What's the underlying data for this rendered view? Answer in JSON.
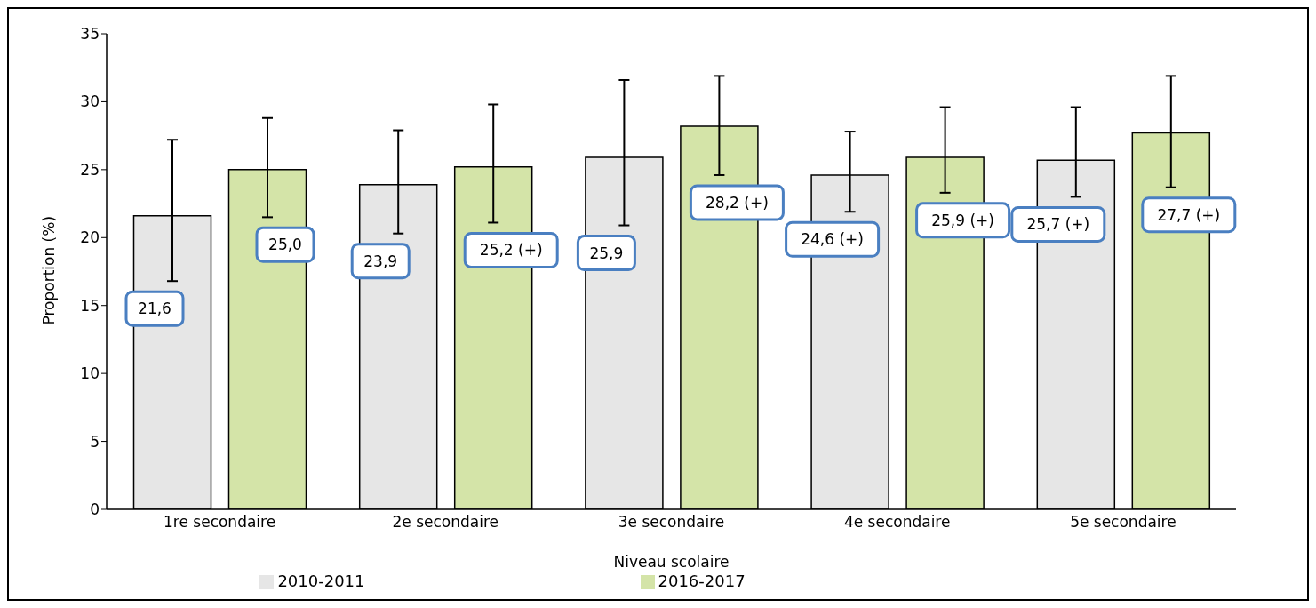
{
  "chart_data": {
    "type": "bar",
    "xlabel": "Niveau scolaire",
    "ylabel": "Proportion (%)",
    "categories": [
      "1re secondaire",
      "2e secondaire",
      "3e secondaire",
      "4e secondaire",
      "5e secondaire"
    ],
    "series": [
      {
        "name": "2010-2011",
        "color": "#e6e6e6",
        "values": [
          21.6,
          23.9,
          25.9,
          24.6,
          25.7
        ],
        "errors": [
          [
            16.8,
            27.2
          ],
          [
            20.3,
            27.9
          ],
          [
            20.9,
            31.6
          ],
          [
            21.9,
            27.8
          ],
          [
            23.0,
            29.6
          ]
        ],
        "value_labels": [
          "21,6",
          "23,9",
          "25,9",
          "24,6 (+)",
          "25,7 (+)"
        ]
      },
      {
        "name": "2016-2017",
        "color": "#d4e4a8",
        "values": [
          25.0,
          25.2,
          28.2,
          25.9,
          27.7
        ],
        "errors": [
          [
            21.5,
            28.8
          ],
          [
            21.1,
            29.8
          ],
          [
            24.6,
            31.9
          ],
          [
            23.3,
            29.6
          ],
          [
            23.7,
            31.9
          ]
        ],
        "value_labels": [
          "25,0",
          "25,2 (+)",
          "28,2 (+)",
          "25,9 (+)",
          "27,7 (+)"
        ]
      }
    ],
    "ylim": [
      0,
      35
    ],
    "yticks": [
      0,
      5,
      10,
      15,
      20,
      25,
      30,
      35
    ],
    "grid": false,
    "legend": "bottom"
  }
}
